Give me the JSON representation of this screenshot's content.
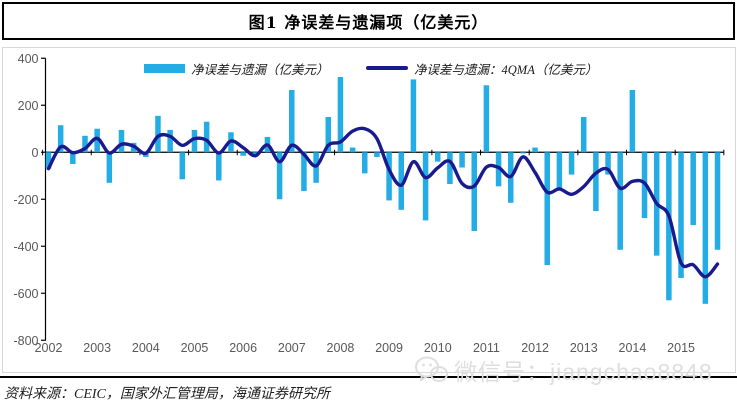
{
  "title": "图1  净误差与遗漏项（亿美元）",
  "legend": {
    "bars": "净误差与遗漏（亿美元）",
    "line": "净误差与遗漏：4QMA（亿美元）"
  },
  "source": "资料来源：CEIC，国家外汇管理局，海通证券研究所",
  "watermark": "微信号：jiangchao8848",
  "colors": {
    "bar": "#24ADE4",
    "line": "#1A1A8F",
    "axis": "#000000",
    "tick_label": "#595959",
    "frame": "#D8D8D8",
    "watermark": "#DEDEDE",
    "title_border": "#000000"
  },
  "chart_data": {
    "type": "bar",
    "x_frequency": "quarterly",
    "x_tick_labels": [
      "2002",
      "2003",
      "2004",
      "2005",
      "2006",
      "2007",
      "2008",
      "2009",
      "2010",
      "2011",
      "2012",
      "2013",
      "2014",
      "2015"
    ],
    "ylim": [
      -800,
      400
    ],
    "yticks": [
      400,
      200,
      0,
      -200,
      -400,
      -600,
      -800
    ],
    "grid": false,
    "legend_position": "top",
    "series": [
      {
        "name": "净误差与遗漏（亿美元）",
        "type": "bar",
        "values": [
          -70,
          115,
          -50,
          70,
          100,
          -130,
          95,
          40,
          -20,
          155,
          95,
          -115,
          95,
          130,
          -120,
          85,
          -15,
          -10,
          65,
          -200,
          265,
          -165,
          -130,
          150,
          320,
          20,
          -90,
          -20,
          -205,
          -245,
          310,
          -290,
          -40,
          -135,
          -65,
          -335,
          285,
          -145,
          -215,
          -5,
          20,
          -480,
          -160,
          -95,
          150,
          -250,
          -95,
          -415,
          265,
          -280,
          -440,
          -630,
          -535,
          -310,
          -645,
          -415
        ]
      },
      {
        "name": "净误差与遗漏：4QMA（亿美元）",
        "type": "line",
        "values": [
          -70,
          23,
          -2,
          16,
          59,
          -3,
          34,
          26,
          -4,
          68,
          68,
          29,
          58,
          51,
          -3,
          48,
          20,
          -15,
          31,
          -40,
          30,
          -9,
          -58,
          30,
          44,
          90,
          100,
          58,
          -74,
          -140,
          -40,
          -108,
          -66,
          -39,
          -133,
          -144,
          -63,
          -65,
          -103,
          -20,
          -86,
          -170,
          -156,
          -179,
          -146,
          -89,
          -73,
          -153,
          -124,
          -131,
          -218,
          -271,
          -471,
          -479,
          -530,
          -476
        ]
      }
    ]
  }
}
